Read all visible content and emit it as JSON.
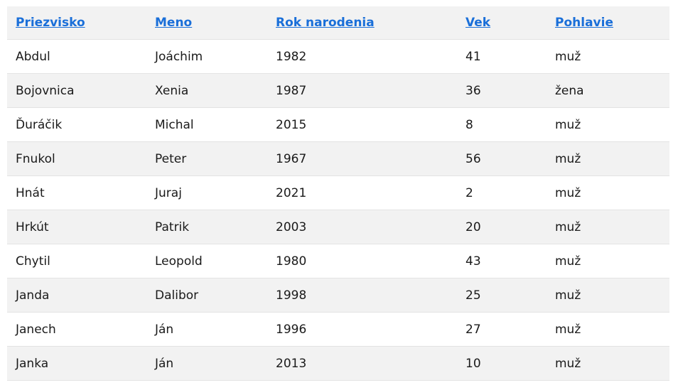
{
  "table": {
    "columns": [
      "Priezvisko",
      "Meno",
      "Rok narodenia",
      "Vek",
      "Pohlavie"
    ],
    "rows": [
      [
        "Abdul",
        "Joáchim",
        "1982",
        "41",
        "muž"
      ],
      [
        "Bojovnica",
        "Xenia",
        "1987",
        "36",
        "žena"
      ],
      [
        "Ďuráčik",
        "Michal",
        "2015",
        "8",
        "muž"
      ],
      [
        "Fnukol",
        "Peter",
        "1967",
        "56",
        "muž"
      ],
      [
        "Hnát",
        "Juraj",
        "2021",
        "2",
        "muž"
      ],
      [
        "Hrkút",
        "Patrik",
        "2003",
        "20",
        "muž"
      ],
      [
        "Chytil",
        "Leopold",
        "1980",
        "43",
        "muž"
      ],
      [
        "Janda",
        "Dalibor",
        "1998",
        "25",
        "muž"
      ],
      [
        "Janech",
        "Ján",
        "1996",
        "27",
        "muž"
      ],
      [
        "Janka",
        "Ján",
        "2013",
        "10",
        "muž"
      ]
    ]
  },
  "colors": {
    "link": "#1a6fd9",
    "header_bg": "#f2f2f2",
    "stripe_bg": "#f2f2f2",
    "row_bg": "#ffffff"
  }
}
